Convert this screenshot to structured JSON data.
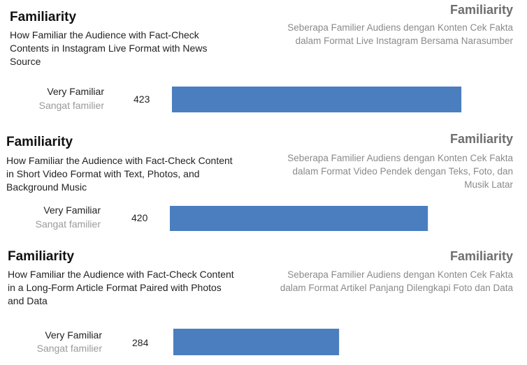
{
  "chart_data": [
    {
      "type": "bar",
      "title": "Familiarity",
      "subtitle": "How Familiar the Audience with Fact-Check Contents in Instagram Live Format with News Source",
      "title_id": "Familiarity",
      "subtitle_id": "Seberapa Familier Audiens dengan Konten Cek Fakta dalam Format Live Instagram Bersama Narasumber",
      "categories": [
        "Very Familiar"
      ],
      "categories_id": [
        "Sangat familier"
      ],
      "values": [
        423
      ],
      "color": "#4a7ebf"
    },
    {
      "type": "bar",
      "title": "Familiarity",
      "subtitle": "How Familiar the Audience with Fact-Check Content in Short Video Format with Text, Photos, and Background Music",
      "title_id": "Familiarity",
      "subtitle_id": "Seberapa Familier Audiens dengan Konten Cek Fakta dalam Format Video Pendek dengan Teks, Foto, dan Musik Latar",
      "categories": [
        "Very Familiar"
      ],
      "categories_id": [
        "Sangat familier"
      ],
      "values": [
        420
      ],
      "color": "#4a7ebf"
    },
    {
      "type": "bar",
      "title": "Familiarity",
      "subtitle": "How Familiar the Audience with Fact-Check Content in a Long-Form Article Format Paired with Photos and Data",
      "title_id": "Familiarity",
      "subtitle_id": "Seberapa Familier Audiens dengan Konten Cek Fakta dalam Format Artikel Panjang Dilengkapi Foto dan Data",
      "categories": [
        "Very Familiar"
      ],
      "categories_id": [
        "Sangat familier"
      ],
      "values": [
        284
      ],
      "color": "#4a7ebf"
    }
  ]
}
